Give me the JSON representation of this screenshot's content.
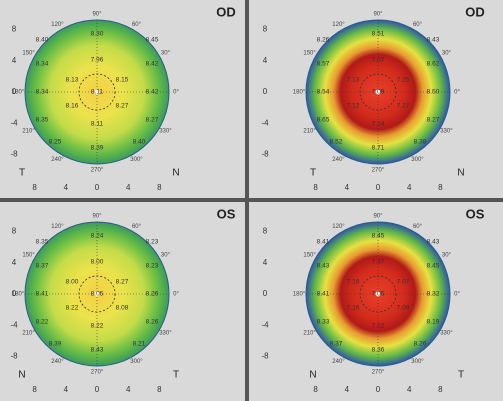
{
  "angle_labels": [
    "90°",
    "60°",
    "30°",
    "0°",
    "330°",
    "300°",
    "270°",
    "240°",
    "210°",
    "180°",
    "150°",
    "120°"
  ],
  "x_axis_ticks": [
    "8",
    "4",
    "0",
    "4",
    "8"
  ],
  "y_axis_ticks": [
    "8",
    "4",
    "0",
    "-4",
    "-8"
  ],
  "panels": [
    {
      "eye": "OD",
      "corner_left": "T",
      "corner_right": "N",
      "values": [
        "8.40",
        "8.30",
        "8.45",
        "8.34",
        "7.96",
        "8.42",
        "8.13",
        "8.15",
        "8.34",
        "8.11",
        "8.42",
        "8.16",
        "8.27",
        "8.35",
        "8.11",
        "8.27",
        "8.25",
        "8.39",
        "8.40"
      ]
    },
    {
      "eye": "OD",
      "corner_left": "T",
      "corner_right": "N",
      "values": [
        "8.26",
        "8.51",
        "8.43",
        "8.57",
        "7.07",
        "8.62",
        "7.13",
        "7.25",
        "8.54",
        "7.09",
        "8.50",
        "7.12",
        "7.27",
        "8.65",
        "7.14",
        "8.27",
        "8.52",
        "8.71",
        "8.38"
      ]
    },
    {
      "eye": "OS",
      "corner_left": "N",
      "corner_right": "T",
      "values": [
        "8.35",
        "8.24",
        "8.23",
        "8.37",
        "8.00",
        "8.23",
        "8.00",
        "8.27",
        "8.41",
        "8.05",
        "8.26",
        "8.22",
        "8.08",
        "8.22",
        "8.22",
        "8.26",
        "8.39",
        "8.43",
        "8.21"
      ]
    },
    {
      "eye": "OS",
      "corner_left": "N",
      "corner_right": "T",
      "values": [
        "8.41",
        "8.45",
        "8.43",
        "8.43",
        "7.37",
        "8.45",
        "7.18",
        "7.07",
        "8.41",
        "7.05",
        "8.32",
        "7.16",
        "7.09",
        "8.33",
        "7.12",
        "8.19",
        "8.37",
        "8.36",
        "8.26"
      ]
    }
  ]
}
